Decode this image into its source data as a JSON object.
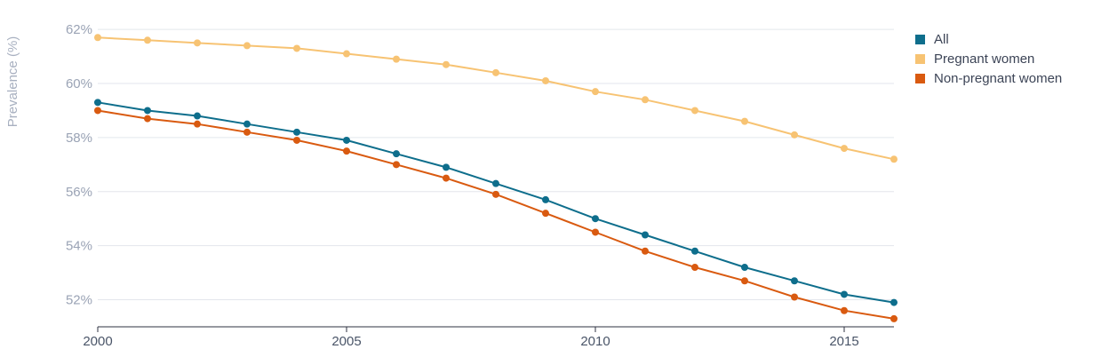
{
  "chart_data": {
    "type": "line",
    "title": "",
    "xlabel": "",
    "ylabel": "Prevalence (%)",
    "x": [
      2000,
      2001,
      2002,
      2003,
      2004,
      2005,
      2006,
      2007,
      2008,
      2009,
      2010,
      2011,
      2012,
      2013,
      2014,
      2015,
      2016
    ],
    "x_ticks": [
      2000,
      2005,
      2010,
      2015
    ],
    "x_tick_labels": [
      "2000",
      "2005",
      "2010",
      "2015"
    ],
    "y_ticks": [
      52,
      54,
      56,
      58,
      60,
      62
    ],
    "y_tick_labels": [
      "52%",
      "54%",
      "56%",
      "58%",
      "60%",
      "62%"
    ],
    "xlim": [
      2000,
      2016
    ],
    "ylim": [
      51,
      62.3
    ],
    "grid": true,
    "legend_position": "top-right",
    "series": [
      {
        "name": "All",
        "color": "#0e6e8c",
        "values": [
          59.3,
          59.0,
          58.8,
          58.5,
          58.2,
          57.9,
          57.4,
          56.9,
          56.3,
          55.7,
          55.0,
          54.4,
          53.8,
          53.2,
          52.7,
          52.2,
          51.9
        ]
      },
      {
        "name": "Pregnant women",
        "color": "#f7c373",
        "values": [
          61.7,
          61.6,
          61.5,
          61.4,
          61.3,
          61.1,
          60.9,
          60.7,
          60.4,
          60.1,
          59.7,
          59.4,
          59.0,
          58.6,
          58.1,
          57.6,
          57.2
        ]
      },
      {
        "name": "Non-pregnant women",
        "color": "#d95a10",
        "values": [
          59.0,
          58.7,
          58.5,
          58.2,
          57.9,
          57.5,
          57.0,
          56.5,
          55.9,
          55.2,
          54.5,
          53.8,
          53.2,
          52.7,
          52.1,
          51.6,
          51.3
        ]
      }
    ]
  }
}
